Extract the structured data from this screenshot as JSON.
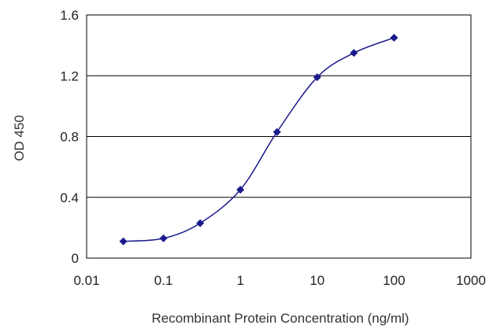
{
  "chart_data": {
    "type": "line",
    "x_scale": "log",
    "xlabel": "Recombinant Protein Concentration (ng/ml)",
    "ylabel": "OD 450",
    "xlim": [
      0.01,
      1000
    ],
    "ylim": [
      0,
      1.6
    ],
    "x_ticks": [
      0.01,
      0.1,
      1,
      10,
      100,
      1000
    ],
    "x_tick_labels": [
      "0.01",
      "0.1",
      "1",
      "10",
      "100",
      "1000"
    ],
    "y_ticks": [
      0,
      0.4,
      0.8,
      1.2,
      1.6
    ],
    "y_tick_labels": [
      "0",
      "0.4",
      "0.8",
      "1.2",
      "1.6"
    ],
    "grid": "horizontal",
    "legend": "none",
    "colors": {
      "series": "#1a1a8c",
      "grid": "#000000"
    },
    "series": [
      {
        "x": [
          0.03,
          0.1,
          0.3,
          1,
          3,
          10,
          30,
          100
        ],
        "y": [
          0.11,
          0.13,
          0.23,
          0.45,
          0.83,
          1.19,
          1.35,
          1.45
        ]
      }
    ]
  }
}
